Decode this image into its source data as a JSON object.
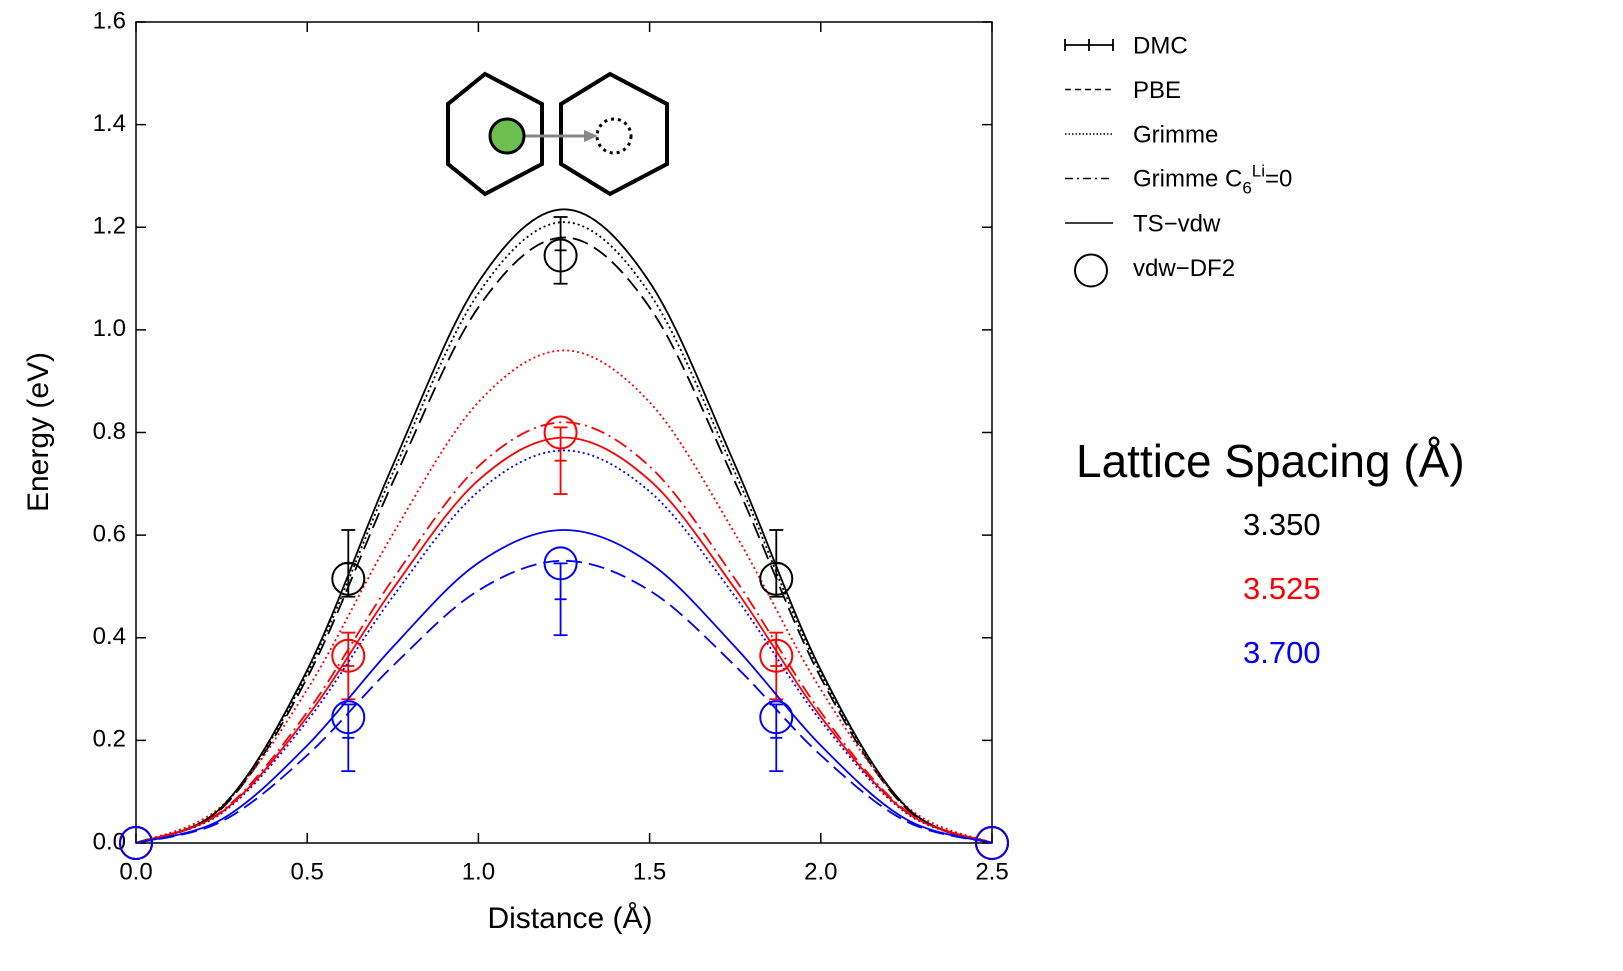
{
  "chart_data": {
    "type": "line",
    "xlabel": "Distance (Å)",
    "ylabel": "Energy (eV)",
    "xlim": [
      0,
      2.5
    ],
    "ylim": [
      0,
      1.6
    ],
    "xticks": [
      {
        "value": 0,
        "label": "0.0"
      },
      0.5,
      {
        "value": 1,
        "label": "1.0"
      },
      1.5,
      {
        "value": 2,
        "label": "2.0"
      },
      2.5
    ],
    "yticks": [
      {
        "value": 0,
        "label": "0.0"
      },
      0.2,
      0.4,
      0.6,
      0.8,
      {
        "value": 1,
        "label": "1.0"
      },
      1.2,
      1.4,
      1.6
    ],
    "lattice_spacing": {
      "title": "Lattice Spacing (Å)",
      "items": [
        {
          "label": "3.350",
          "color": "#000000"
        },
        {
          "label": "3.525",
          "color": "#ff0000"
        },
        {
          "label": "3.700",
          "color": "#0000ff"
        }
      ]
    },
    "methods": [
      {
        "name": "DMC",
        "style": "errorbar",
        "x": [
          0.62,
          1.24,
          1.87
        ],
        "series": [
          {
            "values": [
              0.545,
              1.155,
              0.545
            ],
            "errors": [
              0.065,
              0.065,
              0.065
            ]
          },
          {
            "values": [
              0.345,
              0.745,
              0.345
            ],
            "errors": [
              0.065,
              0.065,
              0.065
            ]
          },
          {
            "values": [
              0.205,
              0.475,
              0.205
            ],
            "errors": [
              0.065,
              0.07,
              0.065
            ]
          }
        ]
      },
      {
        "name": "PBE",
        "style": "dashed",
        "x": [
          0,
          0.25,
          0.5,
          0.75,
          1,
          1.25,
          1.5,
          1.75,
          2,
          2.25,
          2.5
        ],
        "series": [
          {
            "values": [
              0,
              0.067,
              0.322,
              0.703,
              1.044,
              1.18,
              1.044,
              0.703,
              0.322,
              0.067,
              0
            ]
          },
          null,
          {
            "values": [
              0,
              0.042,
              0.171,
              0.345,
              0.492,
              0.55,
              0.492,
              0.345,
              0.171,
              0.042,
              0
            ]
          }
        ]
      },
      {
        "name": "Grimme",
        "style": "dotted",
        "x": [
          0,
          0.25,
          0.5,
          0.75,
          1,
          1.25,
          1.5,
          1.75,
          2,
          2.25,
          2.5
        ],
        "series": [
          {
            "values": [
              0,
              0.069,
              0.33,
              0.721,
              1.071,
              1.21,
              1.071,
              0.721,
              0.33,
              0.069,
              0
            ]
          },
          {
            "values": [
              0,
              0.072,
              0.299,
              0.602,
              0.859,
              0.96,
              0.859,
              0.602,
              0.299,
              0.072,
              0
            ]
          },
          {
            "values": [
              0,
              0.058,
              0.238,
              0.48,
              0.685,
              0.765,
              0.685,
              0.48,
              0.238,
              0.058,
              0
            ]
          }
        ]
      },
      {
        "name": {
          "text": "Grimme C",
          "sub": "6",
          "sup": "Li",
          "rest": "=0"
        },
        "style": "dashdot",
        "x": [
          0,
          0.25,
          0.5,
          0.75,
          1,
          1.25,
          1.5,
          1.75,
          2,
          2.25,
          2.5
        ],
        "series": [
          null,
          {
            "values": [
              0,
              0.062,
              0.255,
              0.514,
              0.734,
              0.82,
              0.734,
              0.514,
              0.255,
              0.062,
              0
            ]
          },
          null
        ]
      },
      {
        "name": "TS−vdw",
        "style": "solid",
        "x": [
          0,
          0.25,
          0.5,
          0.75,
          1,
          1.25,
          1.5,
          1.75,
          2,
          2.25,
          2.5
        ],
        "series": [
          {
            "values": [
              0,
              0.07,
              0.337,
              0.736,
              1.093,
              1.235,
              1.093,
              0.736,
              0.337,
              0.07,
              0
            ]
          },
          {
            "values": [
              0,
              0.06,
              0.246,
              0.495,
              0.707,
              0.79,
              0.707,
              0.495,
              0.246,
              0.06,
              0
            ]
          },
          {
            "values": [
              0,
              0.046,
              0.19,
              0.382,
              0.546,
              0.61,
              0.546,
              0.382,
              0.19,
              0.046,
              0
            ]
          }
        ]
      },
      {
        "name": "vdw−DF2",
        "style": "circle",
        "x": [
          0,
          0.62,
          1.24,
          1.87,
          2.5
        ],
        "series": [
          {
            "values": [
              0,
              0.515,
              1.145,
              0.515,
              0
            ]
          },
          {
            "values": [
              0,
              0.365,
              0.8,
              0.365,
              0
            ]
          },
          {
            "values": [
              0,
              0.245,
              0.545,
              0.245,
              0
            ]
          }
        ]
      }
    ]
  }
}
